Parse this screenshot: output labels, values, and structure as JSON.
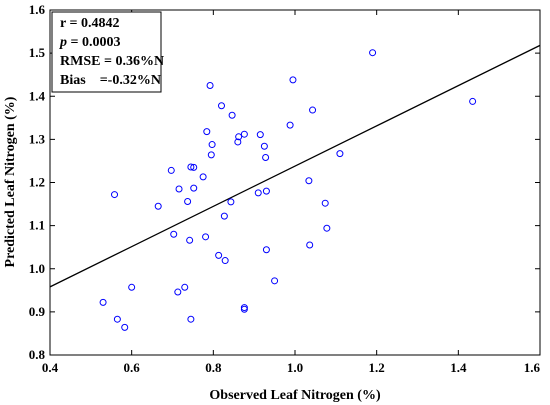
{
  "chart_data": {
    "type": "scatter",
    "xlabel": "Observed Leaf Nitrogen (%)",
    "ylabel": "Predicted Leaf Nitrogen (%)",
    "xlim": [
      0.4,
      1.6
    ],
    "ylim": [
      0.8,
      1.6
    ],
    "xticks": [
      "0.4",
      "0.6",
      "0.8",
      "1.0",
      "1.2",
      "1.4",
      "1.6"
    ],
    "yticks": [
      "0.8",
      "0.9",
      "1.0",
      "1.1",
      "1.2",
      "1.3",
      "1.4",
      "1.5",
      "1.6"
    ],
    "grid": false,
    "marker_color": "#0000ff",
    "line_color": "#000000",
    "fit_line": {
      "x": [
        0.4,
        1.6
      ],
      "y": [
        0.958,
        1.518
      ]
    },
    "stats": [
      {
        "key": "r",
        "sep": " = ",
        "value": "0.4842",
        "italic": false
      },
      {
        "key": "p",
        "sep": " = ",
        "value": "0.0003",
        "italic": true
      },
      {
        "key": "RMSE",
        "sep": " = ",
        "value": "0.36%N",
        "italic": false
      },
      {
        "key": "Bias",
        "sep": "    =",
        "value": "-0.32%N",
        "italic": false
      }
    ],
    "points": [
      {
        "x": 0.53,
        "y": 0.922
      },
      {
        "x": 0.558,
        "y": 1.172
      },
      {
        "x": 0.565,
        "y": 0.883
      },
      {
        "x": 0.583,
        "y": 0.864
      },
      {
        "x": 0.6,
        "y": 0.957
      },
      {
        "x": 0.665,
        "y": 1.145
      },
      {
        "x": 0.697,
        "y": 1.228
      },
      {
        "x": 0.703,
        "y": 1.08
      },
      {
        "x": 0.713,
        "y": 0.946
      },
      {
        "x": 0.716,
        "y": 1.185
      },
      {
        "x": 0.73,
        "y": 0.957
      },
      {
        "x": 0.737,
        "y": 1.156
      },
      {
        "x": 0.742,
        "y": 1.066
      },
      {
        "x": 0.745,
        "y": 1.236
      },
      {
        "x": 0.745,
        "y": 0.883
      },
      {
        "x": 0.752,
        "y": 1.235
      },
      {
        "x": 0.752,
        "y": 1.187
      },
      {
        "x": 0.775,
        "y": 1.213
      },
      {
        "x": 0.781,
        "y": 1.074
      },
      {
        "x": 0.784,
        "y": 1.318
      },
      {
        "x": 0.792,
        "y": 1.425
      },
      {
        "x": 0.795,
        "y": 1.264
      },
      {
        "x": 0.797,
        "y": 1.288
      },
      {
        "x": 0.813,
        "y": 1.031
      },
      {
        "x": 0.82,
        "y": 1.378
      },
      {
        "x": 0.827,
        "y": 1.122
      },
      {
        "x": 0.829,
        "y": 1.019
      },
      {
        "x": 0.843,
        "y": 1.155
      },
      {
        "x": 0.846,
        "y": 1.356
      },
      {
        "x": 0.86,
        "y": 1.294
      },
      {
        "x": 0.862,
        "y": 1.306
      },
      {
        "x": 0.876,
        "y": 1.312
      },
      {
        "x": 0.876,
        "y": 0.91
      },
      {
        "x": 0.876,
        "y": 0.906
      },
      {
        "x": 0.91,
        "y": 1.176
      },
      {
        "x": 0.915,
        "y": 1.311
      },
      {
        "x": 0.925,
        "y": 1.284
      },
      {
        "x": 0.928,
        "y": 1.258
      },
      {
        "x": 0.93,
        "y": 1.18
      },
      {
        "x": 0.93,
        "y": 1.044
      },
      {
        "x": 0.95,
        "y": 0.972
      },
      {
        "x": 0.988,
        "y": 1.333
      },
      {
        "x": 0.995,
        "y": 1.438
      },
      {
        "x": 1.034,
        "y": 1.204
      },
      {
        "x": 1.036,
        "y": 1.055
      },
      {
        "x": 1.043,
        "y": 1.368
      },
      {
        "x": 1.074,
        "y": 1.152
      },
      {
        "x": 1.078,
        "y": 1.094
      },
      {
        "x": 1.11,
        "y": 1.267
      },
      {
        "x": 1.19,
        "y": 1.501
      },
      {
        "x": 1.435,
        "y": 1.388
      }
    ]
  }
}
